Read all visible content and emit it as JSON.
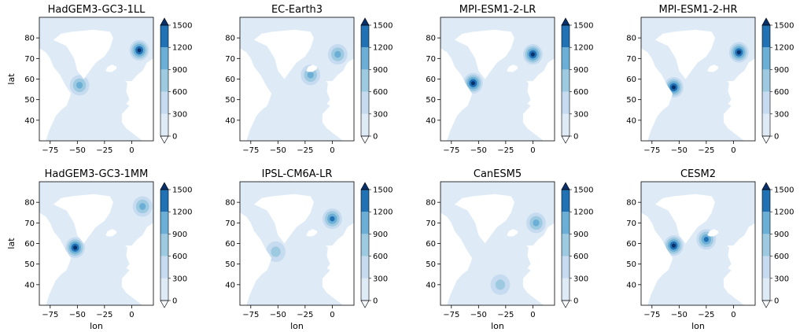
{
  "figure": {
    "xlabel": "lon",
    "ylabel": "lat"
  },
  "chart_data": [
    {
      "type": "heatmap",
      "title": "HadGEM3-GC3-1LL",
      "xlabel": "",
      "ylabel": "lat",
      "xlim": [
        -85,
        20
      ],
      "ylim": [
        30,
        90
      ],
      "xticks": [
        -75,
        -50,
        -25,
        0
      ],
      "yticks": [
        40,
        50,
        60,
        70,
        80
      ],
      "colorbar": {
        "levels": [
          0,
          300,
          600,
          900,
          1200,
          1500
        ],
        "extend": "both",
        "cmap": "Blues"
      },
      "maxima": [
        {
          "lon": -48,
          "lat": 57,
          "value": 900
        },
        {
          "lon": 7,
          "lat": 74,
          "value": 1500
        }
      ]
    },
    {
      "type": "heatmap",
      "title": "EC-Earth3",
      "xlabel": "",
      "ylabel": "",
      "xlim": [
        -85,
        20
      ],
      "ylim": [
        30,
        90
      ],
      "xticks": [
        -75,
        -50,
        -25,
        0
      ],
      "yticks": [
        40,
        50,
        60,
        70,
        80
      ],
      "colorbar": {
        "levels": [
          0,
          300,
          600,
          900,
          1200,
          1500
        ],
        "extend": "both",
        "cmap": "Blues"
      },
      "maxima": [
        {
          "lon": -20,
          "lat": 62,
          "value": 900
        },
        {
          "lon": 5,
          "lat": 72,
          "value": 900
        }
      ]
    },
    {
      "type": "heatmap",
      "title": "MPI-ESM1-2-LR",
      "xlabel": "",
      "ylabel": "",
      "xlim": [
        -85,
        20
      ],
      "ylim": [
        30,
        90
      ],
      "xticks": [
        -75,
        -50,
        -25,
        0
      ],
      "yticks": [
        40,
        50,
        60,
        70,
        80
      ],
      "colorbar": {
        "levels": [
          0,
          300,
          600,
          900,
          1200,
          1500
        ],
        "extend": "both",
        "cmap": "Blues"
      },
      "maxima": [
        {
          "lon": -55,
          "lat": 58,
          "value": 1500
        },
        {
          "lon": 0,
          "lat": 72,
          "value": 1500
        }
      ]
    },
    {
      "type": "heatmap",
      "title": "MPI-ESM1-2-HR",
      "xlabel": "",
      "ylabel": "",
      "xlim": [
        -85,
        20
      ],
      "ylim": [
        30,
        90
      ],
      "xticks": [
        -75,
        -50,
        -25,
        0
      ],
      "yticks": [
        40,
        50,
        60,
        70,
        80
      ],
      "colorbar": {
        "levels": [
          0,
          300,
          600,
          900,
          1200,
          1500
        ],
        "extend": "both",
        "cmap": "Blues"
      },
      "maxima": [
        {
          "lon": -55,
          "lat": 56,
          "value": 1500
        },
        {
          "lon": 5,
          "lat": 73,
          "value": 1500
        }
      ]
    },
    {
      "type": "heatmap",
      "title": "HadGEM3-GC3-1MM",
      "xlabel": "lon",
      "ylabel": "lat",
      "xlim": [
        -85,
        20
      ],
      "ylim": [
        30,
        90
      ],
      "xticks": [
        -75,
        -50,
        -25,
        0
      ],
      "yticks": [
        40,
        50,
        60,
        70,
        80
      ],
      "colorbar": {
        "levels": [
          0,
          300,
          600,
          900,
          1200,
          1500
        ],
        "extend": "both",
        "cmap": "Blues"
      },
      "maxima": [
        {
          "lon": -52,
          "lat": 58,
          "value": 1500
        },
        {
          "lon": 10,
          "lat": 78,
          "value": 900
        }
      ]
    },
    {
      "type": "heatmap",
      "title": "IPSL-CM6A-LR",
      "xlabel": "lon",
      "ylabel": "",
      "xlim": [
        -85,
        20
      ],
      "ylim": [
        30,
        90
      ],
      "xticks": [
        -75,
        -50,
        -25,
        0
      ],
      "yticks": [
        40,
        50,
        60,
        70,
        80
      ],
      "colorbar": {
        "levels": [
          0,
          300,
          600,
          900,
          1200,
          1500
        ],
        "extend": "both",
        "cmap": "Blues"
      },
      "maxima": [
        {
          "lon": 0,
          "lat": 72,
          "value": 1200
        },
        {
          "lon": -52,
          "lat": 56,
          "value": 600
        }
      ]
    },
    {
      "type": "heatmap",
      "title": "CanESM5",
      "xlabel": "lon",
      "ylabel": "",
      "xlim": [
        -85,
        20
      ],
      "ylim": [
        30,
        90
      ],
      "xticks": [
        -75,
        -50,
        -25,
        0
      ],
      "yticks": [
        40,
        50,
        60,
        70,
        80
      ],
      "colorbar": {
        "levels": [
          0,
          300,
          600,
          900,
          1200,
          1500
        ],
        "extend": "both",
        "cmap": "Blues"
      },
      "maxima": [
        {
          "lon": 3,
          "lat": 70,
          "value": 900
        },
        {
          "lon": -30,
          "lat": 40,
          "value": 600
        }
      ]
    },
    {
      "type": "heatmap",
      "title": "CESM2",
      "xlabel": "lon",
      "ylabel": "",
      "xlim": [
        -85,
        20
      ],
      "ylim": [
        30,
        90
      ],
      "xticks": [
        -75,
        -50,
        -25,
        0
      ],
      "yticks": [
        40,
        50,
        60,
        70,
        80
      ],
      "colorbar": {
        "levels": [
          0,
          300,
          600,
          900,
          1200,
          1500
        ],
        "extend": "both",
        "cmap": "Blues"
      },
      "maxima": [
        {
          "lon": -55,
          "lat": 59,
          "value": 1500
        },
        {
          "lon": -25,
          "lat": 62,
          "value": 1200
        }
      ]
    }
  ],
  "colors": [
    "#f7fbff",
    "#deebf7",
    "#c6dbef",
    "#9ecae1",
    "#6baed6",
    "#2171b5",
    "#08306b"
  ]
}
